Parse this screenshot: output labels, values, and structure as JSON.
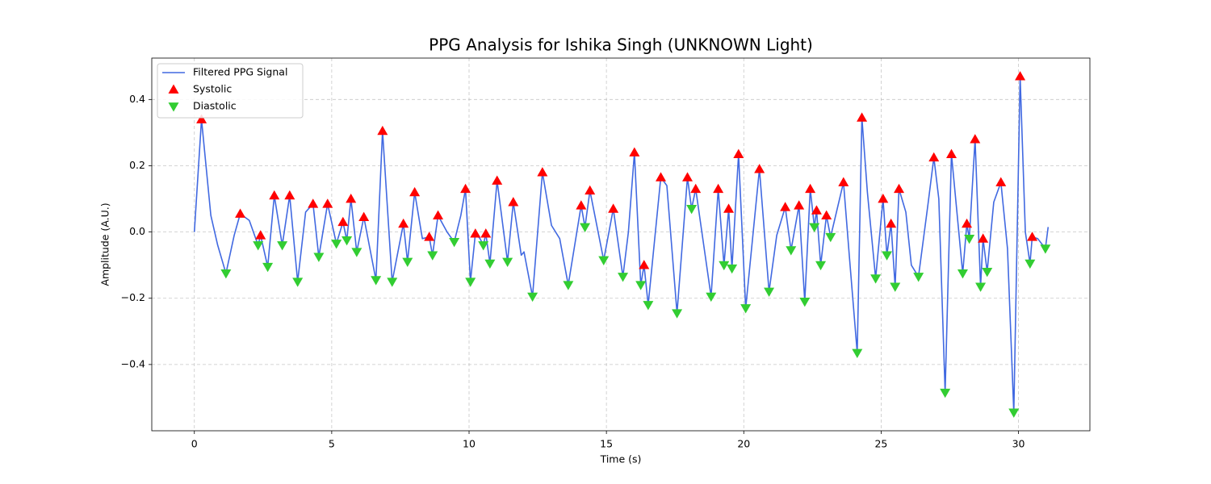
{
  "chart_data": {
    "type": "line",
    "title": "PPG Analysis for Ishika Singh (UNKNOWN Light)",
    "x_label": "Time (s)",
    "y_label": "Amplitude (A.U.)",
    "xlim": [
      -1.55,
      32.6
    ],
    "ylim": [
      -0.6,
      0.525
    ],
    "xticks": [
      0,
      5,
      10,
      15,
      20,
      25,
      30
    ],
    "yticks": [
      {
        "value": -0.4,
        "label": "−0.4"
      },
      {
        "value": -0.2,
        "label": "−0.2"
      },
      {
        "value": 0,
        "label": "0.0"
      },
      0.2,
      0.4
    ],
    "grid": true,
    "legend": "upper left",
    "series": [
      {
        "name": "Filtered PPG Signal",
        "type": "line",
        "color": "#4169e1",
        "x": [
          0,
          0.26,
          0.6,
          0.85,
          1.15,
          1.45,
          1.67,
          2.0,
          2.32,
          2.41,
          2.67,
          2.91,
          3.2,
          3.47,
          3.76,
          4.05,
          4.32,
          4.53,
          4.85,
          5.17,
          5.41,
          5.55,
          5.7,
          5.91,
          6.17,
          6.61,
          6.85,
          7.2,
          7.61,
          7.76,
          8.02,
          8.3,
          8.55,
          8.67,
          8.87,
          9.2,
          9.46,
          9.7,
          9.87,
          10.05,
          10.23,
          10.4,
          10.52,
          10.61,
          10.76,
          11.02,
          11.4,
          11.61,
          11.9,
          12.0,
          12.31,
          12.67,
          13.0,
          13.3,
          13.61,
          14.08,
          14.22,
          14.4,
          14.9,
          15.25,
          15.6,
          15.8,
          16.02,
          16.25,
          16.37,
          16.52,
          16.98,
          17.2,
          17.57,
          17.95,
          18.1,
          18.25,
          18.81,
          19.07,
          19.28,
          19.45,
          19.57,
          19.81,
          20.07,
          20.57,
          20.92,
          21.2,
          21.51,
          21.72,
          22.01,
          22.22,
          22.42,
          22.57,
          22.65,
          22.8,
          23.01,
          23.16,
          23.63,
          23.85,
          24.13,
          24.3,
          24.5,
          24.8,
          25.07,
          25.21,
          25.36,
          25.51,
          25.65,
          25.9,
          26.1,
          26.36,
          26.7,
          26.92,
          27.1,
          27.33,
          27.56,
          27.97,
          28.12,
          28.21,
          28.42,
          28.62,
          28.71,
          28.86,
          29.1,
          29.36,
          29.6,
          29.83,
          30.06,
          30.25,
          30.42,
          30.5,
          30.7,
          30.98,
          31.08
        ],
        "values": [
          0,
          0.34,
          0.05,
          -0.04,
          -0.125,
          -0.01,
          0.055,
          0.035,
          -0.04,
          -0.01,
          -0.105,
          0.11,
          -0.04,
          0.11,
          -0.15,
          0.06,
          0.085,
          -0.075,
          0.085,
          -0.035,
          0.03,
          -0.025,
          0.1,
          -0.06,
          0.045,
          -0.145,
          0.305,
          -0.15,
          0.025,
          -0.09,
          0.12,
          -0.02,
          -0.015,
          -0.07,
          0.05,
          0,
          -0.03,
          0.05,
          0.13,
          -0.15,
          -0.005,
          -0.02,
          -0.04,
          -0.005,
          -0.095,
          0.155,
          -0.09,
          0.09,
          -0.07,
          -0.06,
          -0.195,
          0.18,
          0.02,
          -0.02,
          -0.16,
          0.08,
          0.015,
          0.125,
          -0.085,
          0.07,
          -0.135,
          0,
          0.24,
          -0.16,
          -0.1,
          -0.22,
          0.165,
          0.14,
          -0.245,
          0.165,
          0.07,
          0.13,
          -0.195,
          0.13,
          -0.1,
          0.07,
          -0.11,
          0.235,
          -0.23,
          0.19,
          -0.18,
          -0.01,
          0.075,
          -0.055,
          0.08,
          -0.21,
          0.13,
          0.015,
          0.065,
          -0.1,
          0.05,
          -0.015,
          0.15,
          -0.08,
          -0.365,
          0.345,
          0.12,
          -0.14,
          0.1,
          -0.07,
          0.025,
          -0.165,
          0.13,
          0.06,
          -0.1,
          -0.135,
          0.08,
          0.225,
          0.1,
          -0.485,
          0.235,
          -0.125,
          0.025,
          -0.02,
          0.28,
          -0.165,
          -0.02,
          -0.12,
          0.09,
          0.15,
          -0.05,
          -0.545,
          0.47,
          0,
          -0.095,
          -0.015,
          -0.02,
          -0.05,
          0.015
        ]
      },
      {
        "name": "Systolic",
        "type": "scatter",
        "marker": "up",
        "color": "#ff0000",
        "x": [
          0.26,
          1.67,
          2.41,
          2.91,
          3.47,
          4.32,
          4.85,
          5.41,
          5.7,
          6.17,
          6.85,
          7.61,
          8.02,
          8.55,
          8.87,
          9.87,
          10.23,
          10.61,
          11.02,
          11.61,
          12.67,
          14.08,
          14.4,
          15.25,
          16.02,
          16.37,
          16.98,
          17.95,
          18.25,
          19.07,
          19.45,
          19.81,
          20.57,
          21.51,
          22.01,
          22.42,
          22.65,
          23.01,
          23.63,
          24.3,
          25.07,
          25.36,
          25.65,
          26.92,
          27.56,
          28.12,
          28.42,
          28.71,
          29.36,
          30.06,
          30.5
        ],
        "values": [
          0.34,
          0.055,
          -0.01,
          0.11,
          0.11,
          0.085,
          0.085,
          0.03,
          0.1,
          0.045,
          0.305,
          0.025,
          0.12,
          -0.015,
          0.05,
          0.13,
          -0.005,
          -0.005,
          0.155,
          0.09,
          0.18,
          0.08,
          0.125,
          0.07,
          0.24,
          -0.1,
          0.165,
          0.165,
          0.13,
          0.13,
          0.07,
          0.235,
          0.19,
          0.075,
          0.08,
          0.13,
          0.065,
          0.05,
          0.15,
          0.345,
          0.1,
          0.025,
          0.13,
          0.225,
          0.235,
          0.025,
          0.28,
          -0.02,
          0.15,
          0.47,
          -0.015
        ]
      },
      {
        "name": "Diastolic",
        "type": "scatter",
        "marker": "down",
        "color": "#32cd32",
        "x": [
          1.15,
          2.32,
          2.67,
          3.2,
          3.76,
          4.53,
          5.17,
          5.55,
          5.91,
          6.61,
          7.2,
          7.76,
          8.67,
          9.46,
          10.05,
          10.52,
          10.76,
          11.4,
          12.31,
          13.61,
          14.22,
          14.9,
          15.6,
          16.25,
          16.52,
          17.57,
          18.1,
          18.81,
          19.28,
          19.57,
          20.07,
          20.92,
          21.72,
          22.22,
          22.57,
          22.8,
          23.16,
          24.13,
          24.8,
          25.21,
          25.51,
          26.36,
          27.33,
          27.97,
          28.21,
          28.62,
          28.86,
          29.83,
          30.42,
          30.98
        ],
        "values": [
          -0.125,
          -0.04,
          -0.105,
          -0.04,
          -0.15,
          -0.075,
          -0.035,
          -0.025,
          -0.06,
          -0.145,
          -0.15,
          -0.09,
          -0.07,
          -0.03,
          -0.15,
          -0.04,
          -0.095,
          -0.09,
          -0.195,
          -0.16,
          0.015,
          -0.085,
          -0.135,
          -0.16,
          -0.22,
          -0.245,
          0.07,
          -0.195,
          -0.1,
          -0.11,
          -0.23,
          -0.18,
          -0.055,
          -0.21,
          0.015,
          -0.1,
          -0.015,
          -0.365,
          -0.14,
          -0.07,
          -0.165,
          -0.135,
          -0.485,
          -0.125,
          -0.02,
          -0.165,
          -0.12,
          -0.545,
          -0.095,
          -0.05
        ]
      }
    ]
  }
}
